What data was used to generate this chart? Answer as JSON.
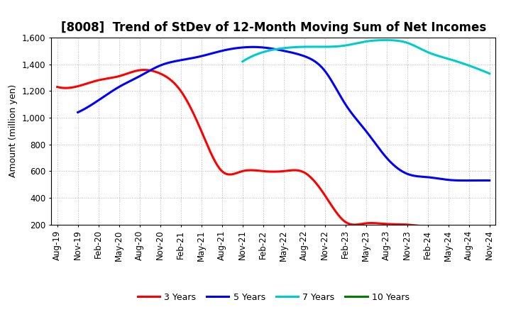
{
  "title": "[8008]  Trend of StDev of 12-Month Moving Sum of Net Incomes",
  "ylabel": "Amount (million yen)",
  "ylim": [
    200,
    1600
  ],
  "yticks": [
    200,
    400,
    600,
    800,
    1000,
    1200,
    1400,
    1600
  ],
  "background_color": "#ffffff",
  "grid_color": "#aaaaaa",
  "series": {
    "3 Years": {
      "color": "#ff0000",
      "data": {
        "Aug-19": 1230,
        "Nov-19": 1235,
        "Feb-20": 1280,
        "May-20": 1310,
        "Aug-20": 1355,
        "Nov-20": 1330,
        "Feb-21": 1200,
        "May-21": 900,
        "Aug-21": 600,
        "Nov-21": 600,
        "Feb-22": 600,
        "May-22": 600,
        "Aug-22": 590,
        "Nov-22": 420,
        "Feb-23": 220,
        "May-23": 210,
        "Aug-23": 205,
        "Nov-23": 200,
        "Feb-24": 185,
        "May-24": 185,
        "Aug-24": 185,
        "Nov-24": null
      }
    },
    "5 Years": {
      "color": "#0000ff",
      "data": {
        "Aug-19": null,
        "Nov-19": 1040,
        "Feb-20": 1130,
        "May-20": 1230,
        "Aug-20": 1310,
        "Nov-20": 1390,
        "Feb-21": 1430,
        "May-21": 1460,
        "Aug-21": 1500,
        "Nov-21": 1525,
        "Feb-22": 1525,
        "May-22": 1500,
        "Aug-22": 1460,
        "Nov-22": 1350,
        "Feb-23": 1100,
        "May-23": 900,
        "Aug-23": 700,
        "Nov-23": 580,
        "Feb-24": 555,
        "May-24": 535,
        "Aug-24": 530,
        "Nov-24": 530
      }
    },
    "7 Years": {
      "color": "#00cccc",
      "data": {
        "Aug-19": null,
        "Nov-19": null,
        "Feb-20": null,
        "May-20": null,
        "Aug-20": null,
        "Nov-20": null,
        "Feb-21": null,
        "May-21": null,
        "Aug-21": null,
        "Nov-21": 1420,
        "Feb-22": 1490,
        "May-22": 1520,
        "Aug-22": 1530,
        "Nov-22": 1530,
        "Feb-23": 1540,
        "May-23": 1570,
        "Aug-23": 1580,
        "Nov-23": 1560,
        "Feb-24": 1490,
        "May-24": 1440,
        "Aug-24": 1390,
        "Nov-24": 1330
      }
    },
    "10 Years": {
      "color": "#008000",
      "data": {}
    }
  },
  "x_labels": [
    "Aug-19",
    "Nov-19",
    "Feb-20",
    "May-20",
    "Aug-20",
    "Nov-20",
    "Feb-21",
    "May-21",
    "Aug-21",
    "Nov-21",
    "Feb-22",
    "May-22",
    "Aug-22",
    "Nov-22",
    "Feb-23",
    "May-23",
    "Aug-23",
    "Nov-23",
    "Feb-24",
    "May-24",
    "Aug-24",
    "Nov-24"
  ],
  "legend_labels": [
    "3 Years",
    "5 Years",
    "7 Years",
    "10 Years"
  ],
  "legend_colors": [
    "#ff0000",
    "#0000ff",
    "#00cccc",
    "#008000"
  ],
  "title_fontsize": 12,
  "axis_fontsize": 8.5,
  "ylabel_fontsize": 9
}
